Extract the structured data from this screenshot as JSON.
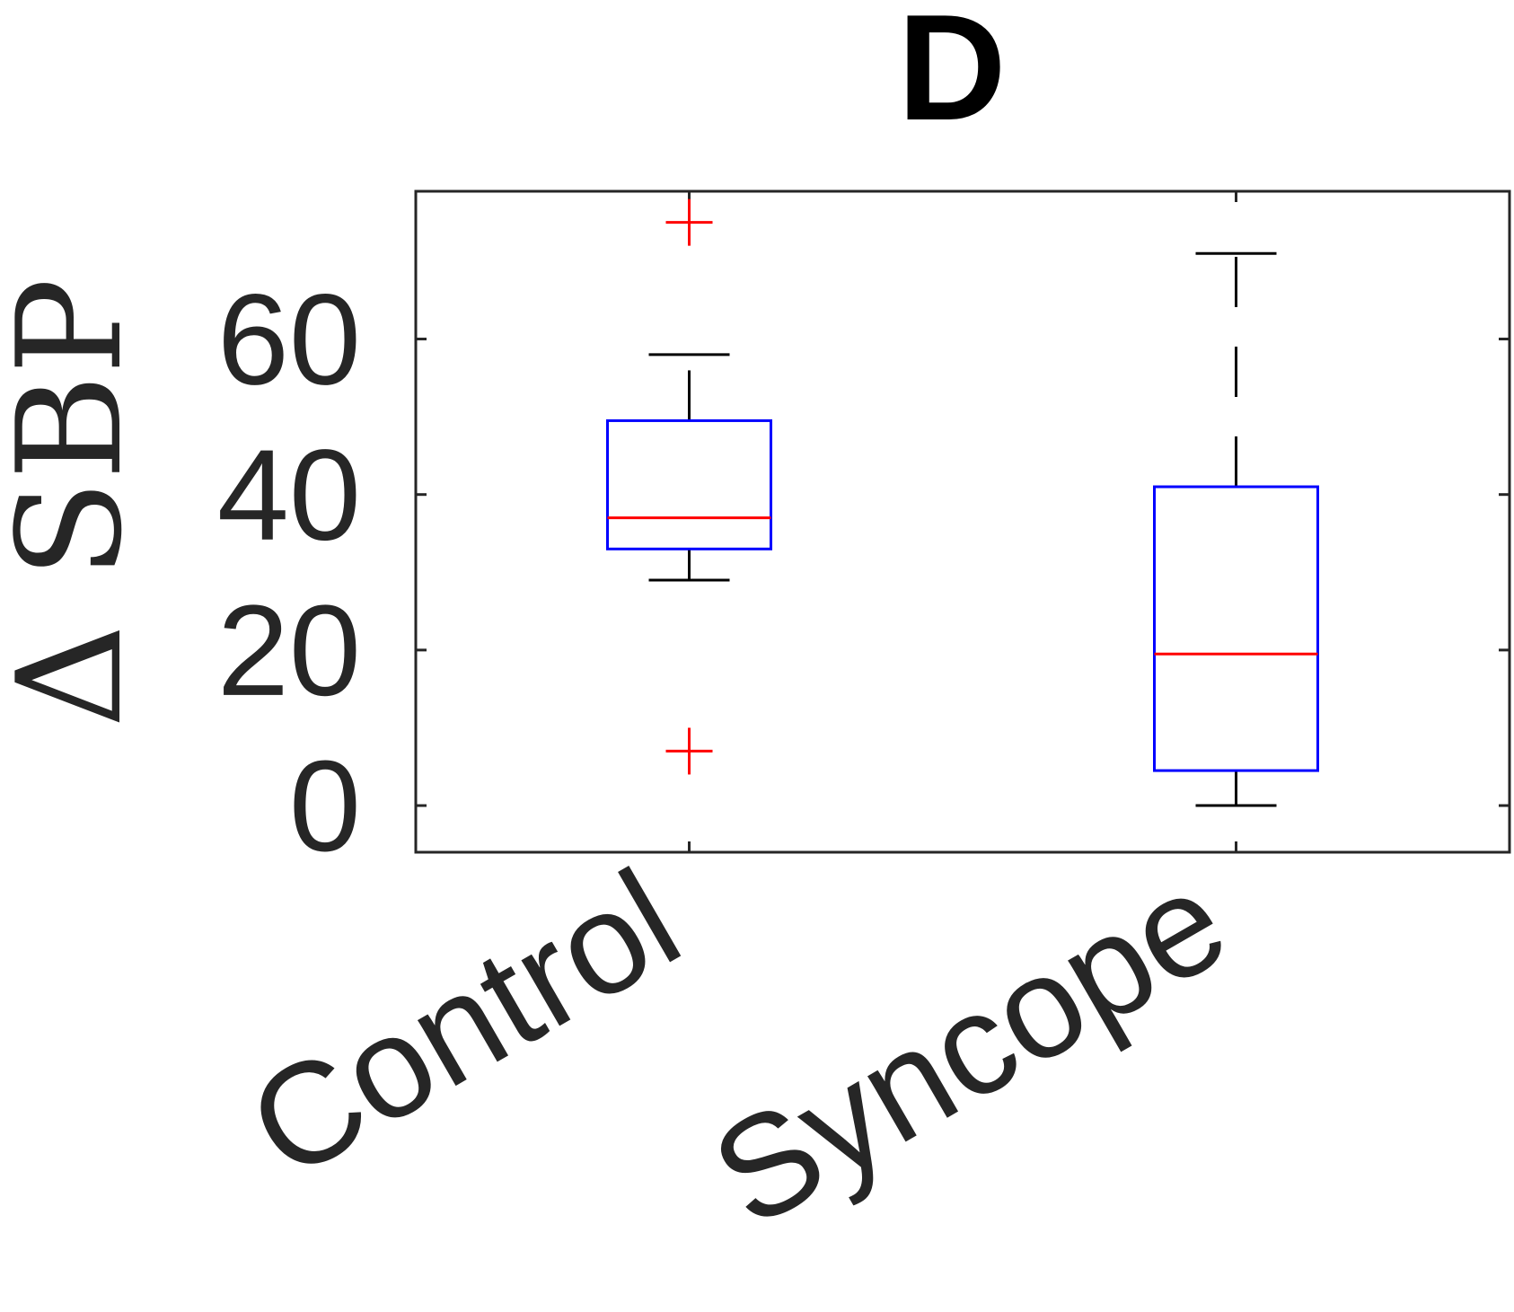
{
  "chart_data": {
    "type": "box",
    "title": "D",
    "ylabel": "Δ SBP",
    "ylim": [
      -6,
      79
    ],
    "yticks": [
      0,
      20,
      40,
      60
    ],
    "categories": [
      "Control",
      "Syncope"
    ],
    "boxes": [
      {
        "category": "Control",
        "whisker_low": 29,
        "q1": 33,
        "median": 37,
        "q3": 49.5,
        "whisker_high": 58,
        "outliers": [
          75,
          7
        ]
      },
      {
        "category": "Syncope",
        "whisker_low": 0,
        "q1": 4.5,
        "median": 19.5,
        "q3": 41,
        "whisker_high": 71,
        "outliers": []
      }
    ],
    "grid": false,
    "legend": "none",
    "colors": {
      "box": "#0000ff",
      "median": "#ff0000",
      "outlier": "#ff0000",
      "whisker": "#000000",
      "axes": "#262626",
      "text": "#262626"
    }
  }
}
